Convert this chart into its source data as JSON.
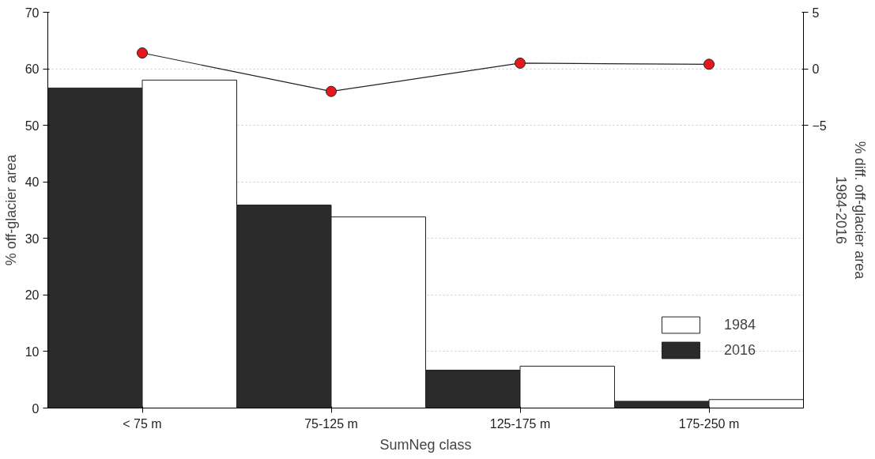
{
  "chart_data": {
    "type": "bar",
    "xlabel": "SumNeg class",
    "ylabel": "% off-glacier area",
    "y2label": "% diff. off-glacier area\n1984-2016",
    "categories": [
      "< 75 m",
      "75-125 m",
      "125-175 m",
      "175-250 m"
    ],
    "series": [
      {
        "name": "2016",
        "color": "#2b2b2b",
        "values": [
          56.6,
          35.9,
          6.7,
          1.2
        ]
      },
      {
        "name": "1984",
        "color": "#ffffff",
        "values": [
          58.0,
          33.8,
          7.4,
          1.5
        ]
      },
      {
        "type": "line",
        "axis": "y2",
        "color": "#e3191c",
        "marker": "circle",
        "values": [
          1.4,
          -2.0,
          0.5,
          0.4
        ]
      }
    ],
    "ylim": [
      0,
      70
    ],
    "yticks": [
      0,
      10,
      20,
      30,
      40,
      50,
      60,
      70
    ],
    "y2lim": [
      -30,
      5
    ],
    "y2ticks": [
      -5,
      0,
      5
    ],
    "grid": "y",
    "legend": "bottom right"
  }
}
